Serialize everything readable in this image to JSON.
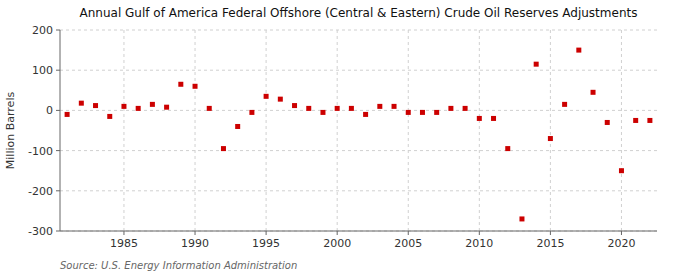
{
  "chart_data": {
    "type": "scatter",
    "title": "Annual Gulf of America Federal Offshore (Central & Eastern) Crude Oil Reserves Adjustments",
    "y_label": "Million Barrels",
    "source": "Source: U.S. Energy Information Administration",
    "color": "#cc0000",
    "marker": "square",
    "grid": true,
    "xlim": [
      1980.5,
      2022.5
    ],
    "ylim": [
      -300,
      200
    ],
    "xticks": [
      1985,
      1990,
      1995,
      2000,
      2005,
      2010,
      2015,
      2020
    ],
    "yticks": [
      -300,
      -200,
      -100,
      0,
      100,
      200
    ],
    "x": [
      1981,
      1982,
      1983,
      1984,
      1985,
      1986,
      1987,
      1988,
      1989,
      1990,
      1991,
      1992,
      1993,
      1994,
      1995,
      1996,
      1997,
      1998,
      1999,
      2000,
      2001,
      2002,
      2003,
      2004,
      2005,
      2006,
      2007,
      2008,
      2009,
      2010,
      2011,
      2012,
      2013,
      2014,
      2015,
      2016,
      2017,
      2018,
      2019,
      2020,
      2021,
      2022
    ],
    "values": [
      -10,
      18,
      12,
      -15,
      10,
      5,
      15,
      8,
      65,
      60,
      5,
      -95,
      -40,
      -5,
      35,
      28,
      12,
      5,
      -5,
      5,
      5,
      -10,
      10,
      10,
      -5,
      -5,
      -5,
      5,
      5,
      -20,
      -20,
      -95,
      -270,
      115,
      -70,
      15,
      150,
      45,
      -30,
      -150,
      -25,
      -25
    ]
  }
}
